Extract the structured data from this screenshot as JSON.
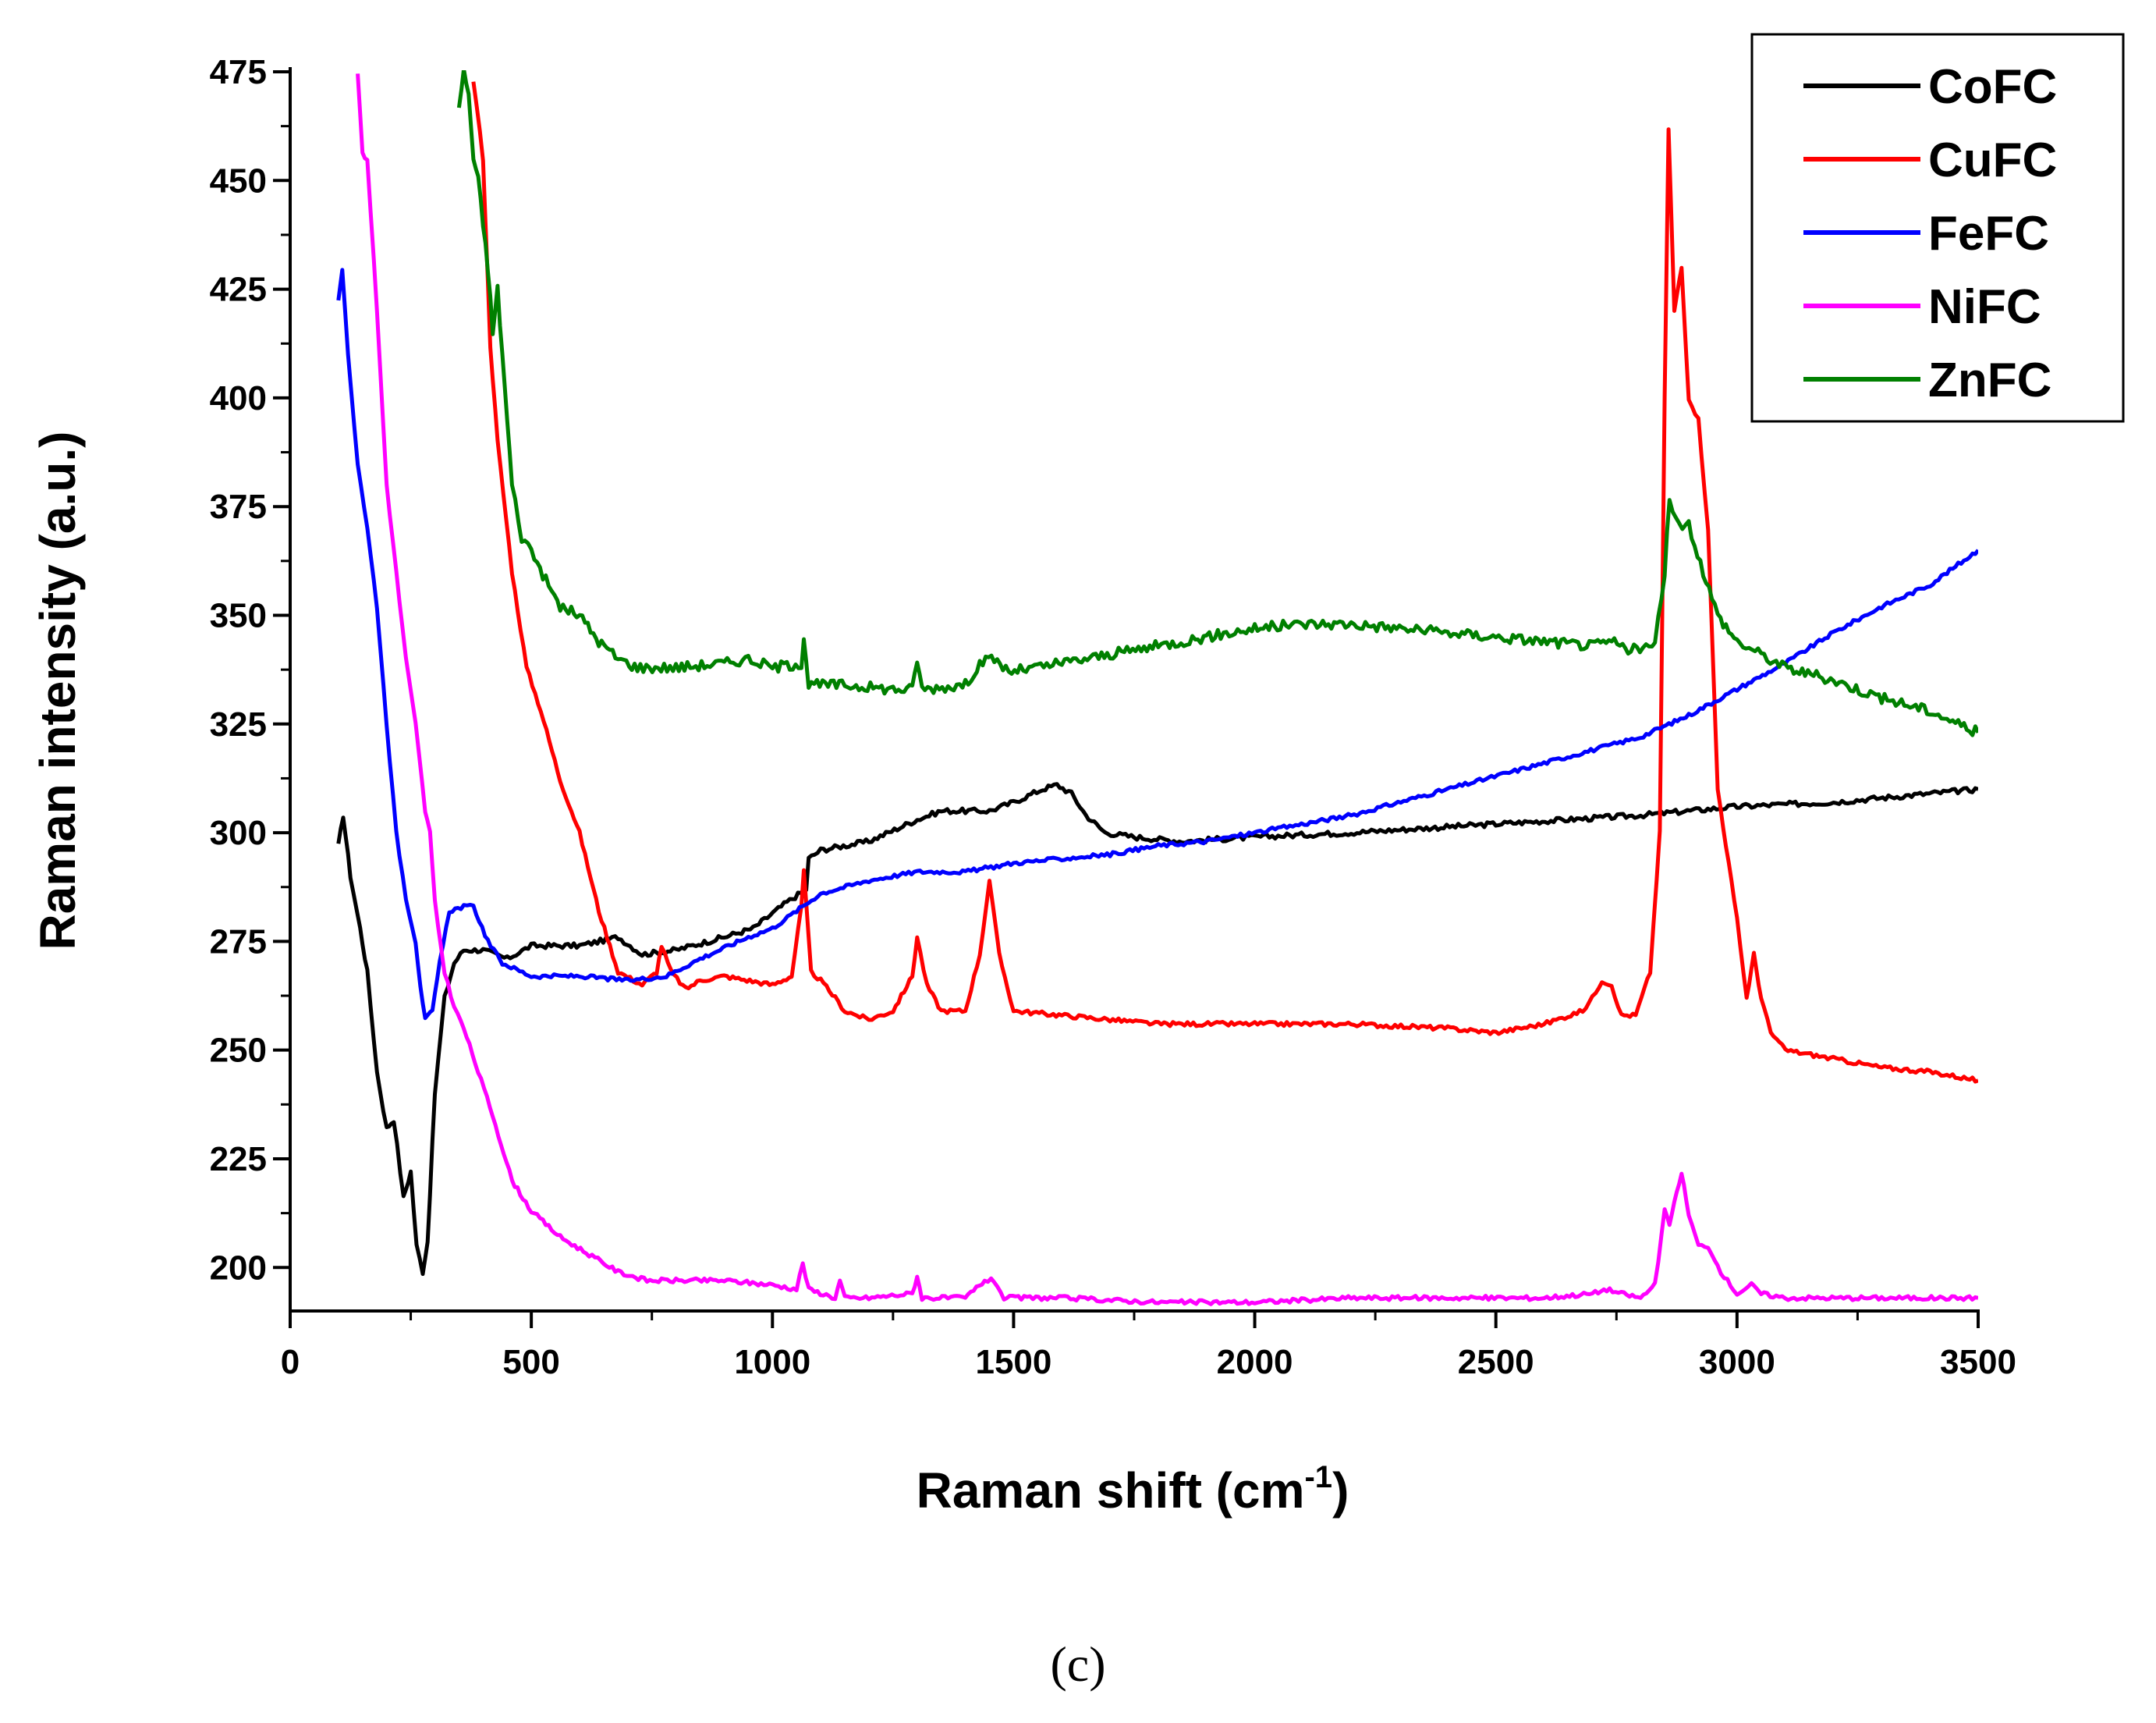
{
  "chart_data": {
    "type": "line",
    "title": "",
    "xlabel": "Raman shift (cm",
    "xlabel_sup": "-1",
    "xlabel_close": ")",
    "ylabel": "Raman intensity (a.u.)",
    "xlim": [
      0,
      3500
    ],
    "ylim": [
      190,
      475
    ],
    "xticks": [
      0,
      500,
      1000,
      1500,
      2000,
      2500,
      3000,
      3500
    ],
    "yticks": [
      200,
      225,
      250,
      275,
      300,
      325,
      350,
      375,
      400,
      425,
      450,
      475
    ],
    "panel_label": "(c)",
    "legend_position": "top-right",
    "series": [
      {
        "name": "CoFC",
        "color": "#000000",
        "points": [
          [
            100,
            297
          ],
          [
            110,
            304
          ],
          [
            125,
            290
          ],
          [
            145,
            278
          ],
          [
            160,
            268
          ],
          [
            180,
            245
          ],
          [
            200,
            232
          ],
          [
            215,
            234
          ],
          [
            235,
            216
          ],
          [
            250,
            222
          ],
          [
            262,
            205
          ],
          [
            275,
            199
          ],
          [
            285,
            206
          ],
          [
            300,
            240
          ],
          [
            320,
            262
          ],
          [
            340,
            270
          ],
          [
            360,
            273
          ],
          [
            400,
            273
          ],
          [
            450,
            271
          ],
          [
            500,
            274
          ],
          [
            600,
            274
          ],
          [
            680,
            276
          ],
          [
            730,
            272
          ],
          [
            800,
            273
          ],
          [
            900,
            276
          ],
          [
            960,
            278
          ],
          [
            1030,
            284
          ],
          [
            1070,
            287
          ],
          [
            1075,
            294
          ],
          [
            1100,
            296
          ],
          [
            1200,
            298
          ],
          [
            1300,
            303
          ],
          [
            1350,
            305
          ],
          [
            1400,
            305
          ],
          [
            1450,
            305
          ],
          [
            1500,
            307
          ],
          [
            1560,
            310
          ],
          [
            1590,
            311
          ],
          [
            1620,
            309
          ],
          [
            1650,
            304
          ],
          [
            1690,
            300
          ],
          [
            1750,
            299
          ],
          [
            1850,
            298
          ],
          [
            2000,
            299
          ],
          [
            2200,
            300
          ],
          [
            2500,
            302
          ],
          [
            2800,
            304
          ],
          [
            3000,
            306
          ],
          [
            3200,
            307
          ],
          [
            3500,
            310
          ]
        ]
      },
      {
        "name": "CuFC",
        "color": "#ff0000",
        "points": [
          [
            380,
            473
          ],
          [
            400,
            455
          ],
          [
            415,
            412
          ],
          [
            430,
            390
          ],
          [
            460,
            360
          ],
          [
            490,
            338
          ],
          [
            520,
            328
          ],
          [
            560,
            312
          ],
          [
            600,
            300
          ],
          [
            640,
            282
          ],
          [
            680,
            268
          ],
          [
            730,
            265
          ],
          [
            760,
            268
          ],
          [
            770,
            274
          ],
          [
            790,
            268
          ],
          [
            820,
            264
          ],
          [
            850,
            266
          ],
          [
            900,
            267
          ],
          [
            1000,
            265
          ],
          [
            1040,
            267
          ],
          [
            1060,
            283
          ],
          [
            1065,
            291
          ],
          [
            1080,
            268
          ],
          [
            1100,
            266
          ],
          [
            1130,
            262
          ],
          [
            1150,
            259
          ],
          [
            1200,
            257
          ],
          [
            1250,
            259
          ],
          [
            1290,
            267
          ],
          [
            1300,
            276
          ],
          [
            1320,
            265
          ],
          [
            1350,
            259
          ],
          [
            1400,
            259
          ],
          [
            1430,
            272
          ],
          [
            1450,
            289
          ],
          [
            1470,
            272
          ],
          [
            1500,
            259
          ],
          [
            1600,
            258
          ],
          [
            1700,
            257
          ],
          [
            1800,
            256
          ],
          [
            2000,
            256
          ],
          [
            2200,
            256
          ],
          [
            2400,
            255
          ],
          [
            2500,
            254
          ],
          [
            2600,
            256
          ],
          [
            2680,
            259
          ],
          [
            2700,
            262
          ],
          [
            2720,
            266
          ],
          [
            2740,
            265
          ],
          [
            2760,
            258
          ],
          [
            2790,
            258
          ],
          [
            2820,
            268
          ],
          [
            2840,
            300
          ],
          [
            2850,
            400
          ],
          [
            2858,
            462
          ],
          [
            2870,
            420
          ],
          [
            2885,
            430
          ],
          [
            2900,
            400
          ],
          [
            2920,
            395
          ],
          [
            2940,
            370
          ],
          [
            2960,
            310
          ],
          [
            3000,
            280
          ],
          [
            3020,
            262
          ],
          [
            3035,
            272
          ],
          [
            3050,
            262
          ],
          [
            3070,
            254
          ],
          [
            3100,
            250
          ],
          [
            3200,
            248
          ],
          [
            3300,
            246
          ],
          [
            3400,
            245
          ],
          [
            3500,
            243
          ]
        ]
      },
      {
        "name": "FeFC",
        "color": "#0000ff",
        "points": [
          [
            100,
            422
          ],
          [
            108,
            429
          ],
          [
            120,
            410
          ],
          [
            140,
            385
          ],
          [
            160,
            370
          ],
          [
            180,
            352
          ],
          [
            200,
            325
          ],
          [
            220,
            300
          ],
          [
            240,
            285
          ],
          [
            260,
            275
          ],
          [
            270,
            265
          ],
          [
            280,
            257
          ],
          [
            295,
            259
          ],
          [
            310,
            270
          ],
          [
            330,
            282
          ],
          [
            360,
            283
          ],
          [
            380,
            283
          ],
          [
            410,
            275
          ],
          [
            440,
            270
          ],
          [
            500,
            267
          ],
          [
            600,
            267
          ],
          [
            700,
            266
          ],
          [
            780,
            267
          ],
          [
            850,
            271
          ],
          [
            950,
            276
          ],
          [
            1000,
            278
          ],
          [
            1050,
            282
          ],
          [
            1100,
            286
          ],
          [
            1200,
            289
          ],
          [
            1300,
            291
          ],
          [
            1400,
            291
          ],
          [
            1500,
            293
          ],
          [
            1600,
            294
          ],
          [
            1700,
            295
          ],
          [
            1800,
            297
          ],
          [
            1900,
            298
          ],
          [
            2000,
            300
          ],
          [
            2200,
            304
          ],
          [
            2400,
            310
          ],
          [
            2600,
            316
          ],
          [
            2800,
            322
          ],
          [
            2900,
            327
          ],
          [
            3000,
            333
          ],
          [
            3100,
            339
          ],
          [
            3200,
            346
          ],
          [
            3300,
            352
          ],
          [
            3400,
            357
          ],
          [
            3500,
            365
          ]
        ]
      },
      {
        "name": "NiFC",
        "color": "#ff00ff",
        "points": [
          [
            140,
            475
          ],
          [
            150,
            456
          ],
          [
            160,
            455
          ],
          [
            180,
            420
          ],
          [
            200,
            380
          ],
          [
            220,
            360
          ],
          [
            240,
            340
          ],
          [
            260,
            325
          ],
          [
            280,
            305
          ],
          [
            290,
            300
          ],
          [
            300,
            284
          ],
          [
            320,
            268
          ],
          [
            340,
            260
          ],
          [
            360,
            255
          ],
          [
            390,
            245
          ],
          [
            420,
            235
          ],
          [
            460,
            220
          ],
          [
            500,
            213
          ],
          [
            560,
            207
          ],
          [
            620,
            203
          ],
          [
            680,
            199
          ],
          [
            740,
            197
          ],
          [
            800,
            197
          ],
          [
            900,
            197
          ],
          [
            1000,
            196
          ],
          [
            1050,
            195
          ],
          [
            1063,
            201
          ],
          [
            1075,
            195
          ],
          [
            1130,
            193
          ],
          [
            1140,
            197
          ],
          [
            1150,
            193
          ],
          [
            1200,
            193
          ],
          [
            1290,
            194
          ],
          [
            1300,
            198
          ],
          [
            1310,
            193
          ],
          [
            1400,
            193
          ],
          [
            1440,
            197
          ],
          [
            1460,
            197
          ],
          [
            1480,
            193
          ],
          [
            1600,
            193
          ],
          [
            1800,
            192
          ],
          [
            2000,
            192
          ],
          [
            2200,
            193
          ],
          [
            2400,
            193
          ],
          [
            2600,
            193
          ],
          [
            2700,
            194
          ],
          [
            2730,
            195
          ],
          [
            2760,
            194
          ],
          [
            2800,
            193
          ],
          [
            2830,
            196
          ],
          [
            2850,
            213
          ],
          [
            2860,
            210
          ],
          [
            2875,
            217
          ],
          [
            2885,
            222
          ],
          [
            2900,
            212
          ],
          [
            2920,
            205
          ],
          [
            2940,
            205
          ],
          [
            2960,
            200
          ],
          [
            2980,
            197
          ],
          [
            3000,
            194
          ],
          [
            3030,
            196
          ],
          [
            3050,
            194
          ],
          [
            3100,
            193
          ],
          [
            3300,
            193
          ],
          [
            3500,
            193
          ]
        ]
      },
      {
        "name": "ZnFC",
        "color": "#008000",
        "points": [
          [
            350,
            467
          ],
          [
            360,
            475
          ],
          [
            370,
            470
          ],
          [
            380,
            455
          ],
          [
            390,
            450
          ],
          [
            400,
            440
          ],
          [
            410,
            430
          ],
          [
            420,
            415
          ],
          [
            430,
            425
          ],
          [
            440,
            410
          ],
          [
            450,
            395
          ],
          [
            460,
            380
          ],
          [
            480,
            368
          ],
          [
            500,
            365
          ],
          [
            530,
            358
          ],
          [
            560,
            352
          ],
          [
            600,
            350
          ],
          [
            640,
            344
          ],
          [
            680,
            340
          ],
          [
            720,
            338
          ],
          [
            800,
            338
          ],
          [
            900,
            339
          ],
          [
            950,
            340
          ],
          [
            1000,
            338
          ],
          [
            1060,
            339
          ],
          [
            1065,
            345
          ],
          [
            1075,
            334
          ],
          [
            1150,
            334
          ],
          [
            1250,
            333
          ],
          [
            1290,
            333
          ],
          [
            1300,
            340
          ],
          [
            1310,
            333
          ],
          [
            1400,
            334
          ],
          [
            1430,
            339
          ],
          [
            1460,
            340
          ],
          [
            1490,
            337
          ],
          [
            1550,
            338
          ],
          [
            1600,
            339
          ],
          [
            1700,
            341
          ],
          [
            1800,
            343
          ],
          [
            1900,
            345
          ],
          [
            2000,
            347
          ],
          [
            2100,
            348
          ],
          [
            2200,
            348
          ],
          [
            2300,
            347
          ],
          [
            2400,
            346
          ],
          [
            2500,
            345
          ],
          [
            2600,
            344
          ],
          [
            2700,
            343
          ],
          [
            2740,
            344
          ],
          [
            2780,
            342
          ],
          [
            2830,
            343
          ],
          [
            2850,
            360
          ],
          [
            2860,
            377
          ],
          [
            2880,
            370
          ],
          [
            2900,
            371
          ],
          [
            2930,
            360
          ],
          [
            2960,
            350
          ],
          [
            3000,
            344
          ],
          [
            3050,
            341
          ],
          [
            3100,
            338
          ],
          [
            3200,
            335
          ],
          [
            3300,
            331
          ],
          [
            3400,
            328
          ],
          [
            3500,
            323
          ]
        ]
      }
    ]
  }
}
